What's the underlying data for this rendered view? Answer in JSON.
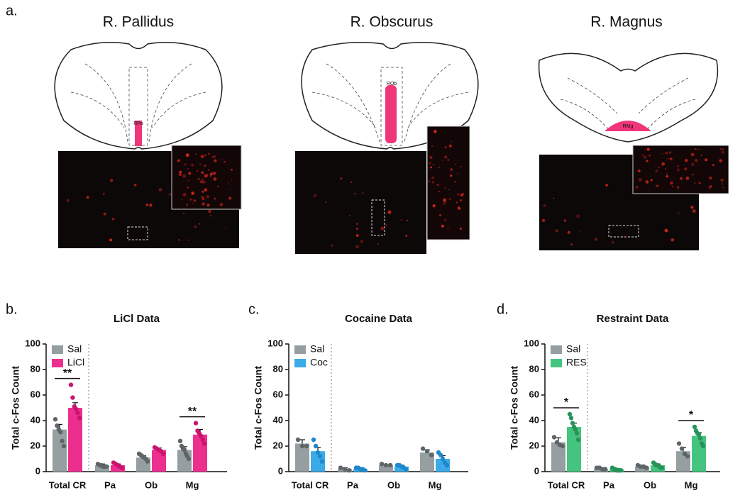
{
  "panel_a": {
    "label": "a.",
    "titles": [
      "R. Pallidus",
      "R. Obscurus",
      "R. Magnus"
    ],
    "region_labels": [
      "RPa",
      "ROb",
      "RMg"
    ]
  },
  "chart_data": [
    {
      "type": "bar",
      "panel_label": "b.",
      "title": "LiCl Data",
      "y_label": "Total c-Fos Count",
      "categories": [
        "Total CR",
        "Pa",
        "Ob",
        "Mg"
      ],
      "ylim": [
        0,
        100
      ],
      "yticks": [
        0,
        20,
        40,
        60,
        80,
        100
      ],
      "significance": [
        "**",
        null,
        null,
        "**"
      ],
      "series": [
        {
          "name": "Sal",
          "color": "#959ea0",
          "point_color": "#5d6566",
          "values": [
            33,
            5,
            11,
            17
          ],
          "errors": [
            4,
            1,
            1.5,
            2.5
          ],
          "points": [
            [
              41,
              36,
              33,
              31,
              24,
              20
            ],
            [
              6,
              5,
              5,
              4,
              4,
              4
            ],
            [
              14,
              13,
              12,
              11,
              10,
              8
            ],
            [
              24,
              20,
              18,
              17,
              14,
              12,
              10
            ]
          ]
        },
        {
          "name": "LiCl",
          "color": "#ec2f8e",
          "point_color": "#c9146f",
          "values": [
            50,
            5,
            17,
            29
          ],
          "errors": [
            4,
            1,
            1.5,
            4
          ],
          "points": [
            [
              68,
              58,
              51,
              49,
              46,
              42
            ],
            [
              7,
              6,
              5,
              4,
              3
            ],
            [
              19,
              18,
              17,
              16,
              14
            ],
            [
              38,
              32,
              30,
              28,
              25,
              22
            ]
          ]
        }
      ]
    },
    {
      "type": "bar",
      "panel_label": "c.",
      "title": "Cocaine Data",
      "y_label": "Total c-Fos Count",
      "categories": [
        "Total CR",
        "Pa",
        "Ob",
        "Mg"
      ],
      "ylim": [
        0,
        100
      ],
      "yticks": [
        0,
        20,
        40,
        60,
        80,
        100
      ],
      "significance": [
        null,
        null,
        null,
        null
      ],
      "series": [
        {
          "name": "Sal",
          "color": "#959ea0",
          "point_color": "#5d6566",
          "values": [
            22,
            2,
            5,
            15
          ],
          "errors": [
            3,
            1,
            0.5,
            2
          ],
          "points": [
            [
              25,
              20,
              20
            ],
            [
              3,
              2,
              1
            ],
            [
              6,
              5,
              5
            ],
            [
              18,
              16,
              13
            ]
          ]
        },
        {
          "name": "Coc",
          "color": "#3aabe6",
          "point_color": "#1e88cc",
          "values": [
            16,
            2,
            4,
            10
          ],
          "errors": [
            3,
            0.7,
            1,
            2.5
          ],
          "points": [
            [
              25,
              20,
              15,
              12,
              8
            ],
            [
              3,
              3,
              2,
              2,
              1
            ],
            [
              5,
              5,
              4,
              3,
              2
            ],
            [
              15,
              13,
              10,
              7,
              5
            ]
          ]
        }
      ]
    },
    {
      "type": "bar",
      "panel_label": "d.",
      "title": "Restraint Data",
      "y_label": "Total c-Fos Count",
      "categories": [
        "Total CR",
        "Pa",
        "Ob",
        "Mg"
      ],
      "ylim": [
        0,
        100
      ],
      "yticks": [
        0,
        20,
        40,
        60,
        80,
        100
      ],
      "significance": [
        "*",
        null,
        null,
        "*"
      ],
      "series": [
        {
          "name": "Sal",
          "color": "#959ea0",
          "point_color": "#5d6566",
          "values": [
            23,
            2,
            4,
            16
          ],
          "errors": [
            3.5,
            0.5,
            0.5,
            3
          ],
          "points": [
            [
              27,
              23,
              21,
              20
            ],
            [
              3,
              3,
              2,
              2
            ],
            [
              5,
              4,
              4,
              3
            ],
            [
              22,
              18,
              14,
              12
            ]
          ]
        },
        {
          "name": "RES",
          "color": "#45c47f",
          "point_color": "#26945a",
          "values": [
            35,
            2,
            5,
            28
          ],
          "errors": [
            3,
            0.5,
            1,
            2.5
          ],
          "points": [
            [
              45,
              42,
              38,
              35,
              33,
              30,
              25
            ],
            [
              3,
              2,
              2,
              1,
              1,
              1,
              1
            ],
            [
              7,
              6,
              5,
              5,
              4,
              3,
              3
            ],
            [
              35,
              32,
              30,
              29,
              26,
              22,
              20
            ]
          ]
        }
      ]
    }
  ]
}
